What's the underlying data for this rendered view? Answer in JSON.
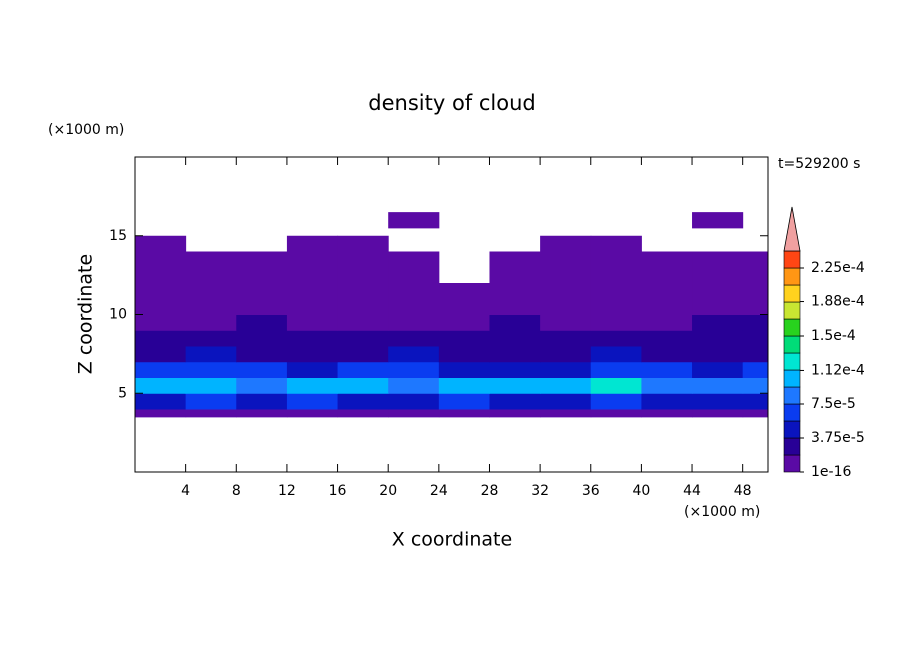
{
  "chart_data": {
    "type": "contour",
    "title": "density of cloud",
    "x_label": "X coordinate",
    "y_label": "Z coordinate",
    "x_unit": "(×1000 m)",
    "y_unit": "(×1000 m)",
    "annotation": "t=529200 s",
    "xlim": [
      0,
      50
    ],
    "ylim": [
      0,
      20
    ],
    "xticks": [
      4,
      8,
      12,
      16,
      20,
      24,
      28,
      32,
      36,
      40,
      44,
      48
    ],
    "yticks": [
      5,
      10,
      15
    ],
    "x_edges": [
      0,
      4,
      8,
      12,
      16,
      20,
      24,
      28,
      32,
      36,
      40,
      44,
      48,
      50
    ],
    "z_edges": [
      3.5,
      4,
      5,
      6,
      7,
      8,
      9,
      10,
      12,
      14,
      15,
      15.5,
      16.5
    ],
    "values": [
      [
        1e-05,
        1e-05,
        1e-05,
        1e-05,
        1e-05,
        1e-05,
        1e-05,
        1e-05,
        1e-05,
        1e-05,
        1e-05,
        1e-05,
        1e-05
      ],
      [
        4.5e-05,
        6.5e-05,
        4.5e-05,
        6.5e-05,
        4.5e-05,
        4.5e-05,
        6.5e-05,
        4.5e-05,
        4.5e-05,
        6.5e-05,
        4.5e-05,
        4.5e-05,
        4.5e-05
      ],
      [
        0.0001,
        0.0001,
        8.5e-05,
        0.0001,
        0.0001,
        8.5e-05,
        0.0001,
        0.0001,
        0.0001,
        0.00012,
        8.5e-05,
        8.5e-05,
        8.5e-05
      ],
      [
        6e-05,
        6e-05,
        6e-05,
        4.5e-05,
        6e-05,
        6e-05,
        4.5e-05,
        4.5e-05,
        4.5e-05,
        6.5e-05,
        6e-05,
        4.5e-05,
        6e-05
      ],
      [
        3e-05,
        4.5e-05,
        3e-05,
        3e-05,
        3e-05,
        4.5e-05,
        3e-05,
        3e-05,
        3e-05,
        4.5e-05,
        3e-05,
        3e-05,
        3e-05
      ],
      [
        2.5e-05,
        2.5e-05,
        2.5e-05,
        2.5e-05,
        2.5e-05,
        2.5e-05,
        2.5e-05,
        2.5e-05,
        2.5e-05,
        2.5e-05,
        2.5e-05,
        2.5e-05,
        2.5e-05
      ],
      [
        1.5e-05,
        1.5e-05,
        2e-05,
        1.5e-05,
        1.5e-05,
        1.5e-05,
        1.5e-05,
        2e-05,
        1.5e-05,
        1.5e-05,
        1.5e-05,
        2e-05,
        2e-05
      ],
      [
        1e-05,
        1e-05,
        1e-05,
        1e-05,
        1e-05,
        1e-05,
        1e-05,
        1e-05,
        1e-05,
        1e-05,
        1e-05,
        1e-05,
        1e-05
      ],
      [
        1e-05,
        1e-05,
        1e-05,
        1e-05,
        1e-05,
        1e-05,
        0,
        1e-05,
        1e-05,
        1e-05,
        1e-05,
        1e-05,
        1e-05
      ],
      [
        1e-05,
        0,
        0,
        1e-05,
        1e-05,
        0,
        0,
        0,
        1e-05,
        1e-05,
        0,
        0,
        0
      ],
      [
        0,
        0,
        0,
        0,
        0,
        0,
        0,
        0,
        0,
        0,
        0,
        0,
        0
      ],
      [
        0,
        0,
        0,
        0,
        0,
        1e-05,
        0,
        0,
        0,
        0,
        0,
        1e-05,
        0
      ]
    ],
    "levels": [
      1e-16,
      1.875e-05,
      3.75e-05,
      5.625e-05,
      7.5e-05,
      9.375e-05,
      0.0001125,
      0.00013125,
      0.00015,
      0.00016875,
      0.0001875,
      0.00020625,
      0.000225,
      0.00024375
    ],
    "colors": [
      "#5a0aa5",
      "#280096",
      "#0a14be",
      "#0a3cf0",
      "#1e78ff",
      "#00b4ff",
      "#00e6d2",
      "#00dc78",
      "#28d21e",
      "#c8e632",
      "#ffd21e",
      "#ff9614",
      "#ff4614"
    ],
    "extend_color": "#f0a0a0",
    "colorbar_ticks": [
      {
        "value": 1e-16,
        "label": "1e-16"
      },
      {
        "value": 3.75e-05,
        "label": "3.75e-5"
      },
      {
        "value": 7.5e-05,
        "label": "7.5e-5"
      },
      {
        "value": 0.000112,
        "label": "1.12e-4"
      },
      {
        "value": 0.00015,
        "label": "1.5e-4"
      },
      {
        "value": 0.000188,
        "label": "1.88e-4"
      },
      {
        "value": 0.000225,
        "label": "2.25e-4"
      }
    ]
  }
}
